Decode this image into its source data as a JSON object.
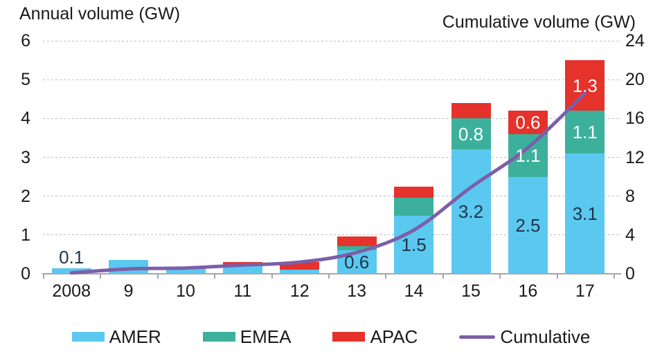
{
  "colors": {
    "amer": "#5BC8F0",
    "emea": "#3DB09C",
    "apac": "#E5322B",
    "cumulative": "#7C5FA8",
    "grid": "#BDBDBD",
    "axis": "#A6A6A6",
    "text": "#1A1A1A",
    "label_dark": "#1E3448",
    "label_light": "#FFFFFF"
  },
  "legend": [
    {
      "label": "AMER",
      "swatch": "box",
      "color_key": "amer"
    },
    {
      "label": "EMEA",
      "swatch": "box",
      "color_key": "emea"
    },
    {
      "label": "APAC",
      "swatch": "box",
      "color_key": "apac"
    },
    {
      "label": "Cumulative",
      "swatch": "line",
      "color_key": "cumulative"
    }
  ],
  "chart_data": {
    "type": "bar",
    "subtype": "stacked-bars-with-line",
    "categories": [
      "2008",
      "9",
      "10",
      "11",
      "12",
      "13",
      "14",
      "15",
      "16",
      "17"
    ],
    "series": [
      {
        "name": "AMER",
        "color_key": "amer",
        "values": [
          0.15,
          0.35,
          0.15,
          0.2,
          0.1,
          0.6,
          1.5,
          3.2,
          2.5,
          3.1
        ]
      },
      {
        "name": "EMEA",
        "color_key": "emea",
        "values": [
          0,
          0,
          0,
          0,
          0,
          0.12,
          0.45,
          0.8,
          1.1,
          1.1
        ]
      },
      {
        "name": "APAC",
        "color_key": "apac",
        "values": [
          0,
          0,
          0,
          0.1,
          0.2,
          0.25,
          0.3,
          0.4,
          0.6,
          1.3
        ]
      }
    ],
    "line_series": {
      "name": "Cumulative",
      "color_key": "cumulative",
      "axis": "right",
      "values": [
        0.1,
        0.5,
        0.6,
        0.9,
        1.2,
        2.2,
        4.5,
        8.9,
        13.0,
        18.6
      ]
    },
    "left_axis": {
      "label": "Annual volume (GW)",
      "ticks": [
        0,
        1,
        2,
        3,
        4,
        5,
        6
      ],
      "range": [
        0,
        6
      ]
    },
    "right_axis": {
      "label": "Cumulative volume (GW)",
      "ticks": [
        0,
        4,
        8,
        12,
        16,
        20,
        24
      ],
      "range": [
        0,
        24
      ]
    },
    "grid": "dashed-horizontal",
    "legend_position": "bottom",
    "bar_labels": [
      {
        "year": "2008",
        "series": "AMER",
        "text": "0.1",
        "placement": "above",
        "tone": "dark"
      },
      {
        "year": "13",
        "series": "AMER",
        "text": "0.6",
        "placement": "inside",
        "tone": "dark"
      },
      {
        "year": "14",
        "series": "AMER",
        "text": "1.5",
        "placement": "inside",
        "tone": "dark"
      },
      {
        "year": "15",
        "series": "AMER",
        "text": "3.2",
        "placement": "inside",
        "tone": "dark"
      },
      {
        "year": "15",
        "series": "EMEA",
        "text": "0.8",
        "placement": "inside",
        "tone": "light"
      },
      {
        "year": "16",
        "series": "AMER",
        "text": "2.5",
        "placement": "inside",
        "tone": "dark"
      },
      {
        "year": "16",
        "series": "EMEA",
        "text": "1.1",
        "placement": "inside",
        "tone": "light"
      },
      {
        "year": "16",
        "series": "APAC",
        "text": "0.6",
        "placement": "inside",
        "tone": "light"
      },
      {
        "year": "17",
        "series": "AMER",
        "text": "3.1",
        "placement": "inside",
        "tone": "dark"
      },
      {
        "year": "17",
        "series": "EMEA",
        "text": "1.1",
        "placement": "inside",
        "tone": "light"
      },
      {
        "year": "17",
        "series": "APAC",
        "text": "1.3",
        "placement": "inside",
        "tone": "light"
      }
    ]
  }
}
